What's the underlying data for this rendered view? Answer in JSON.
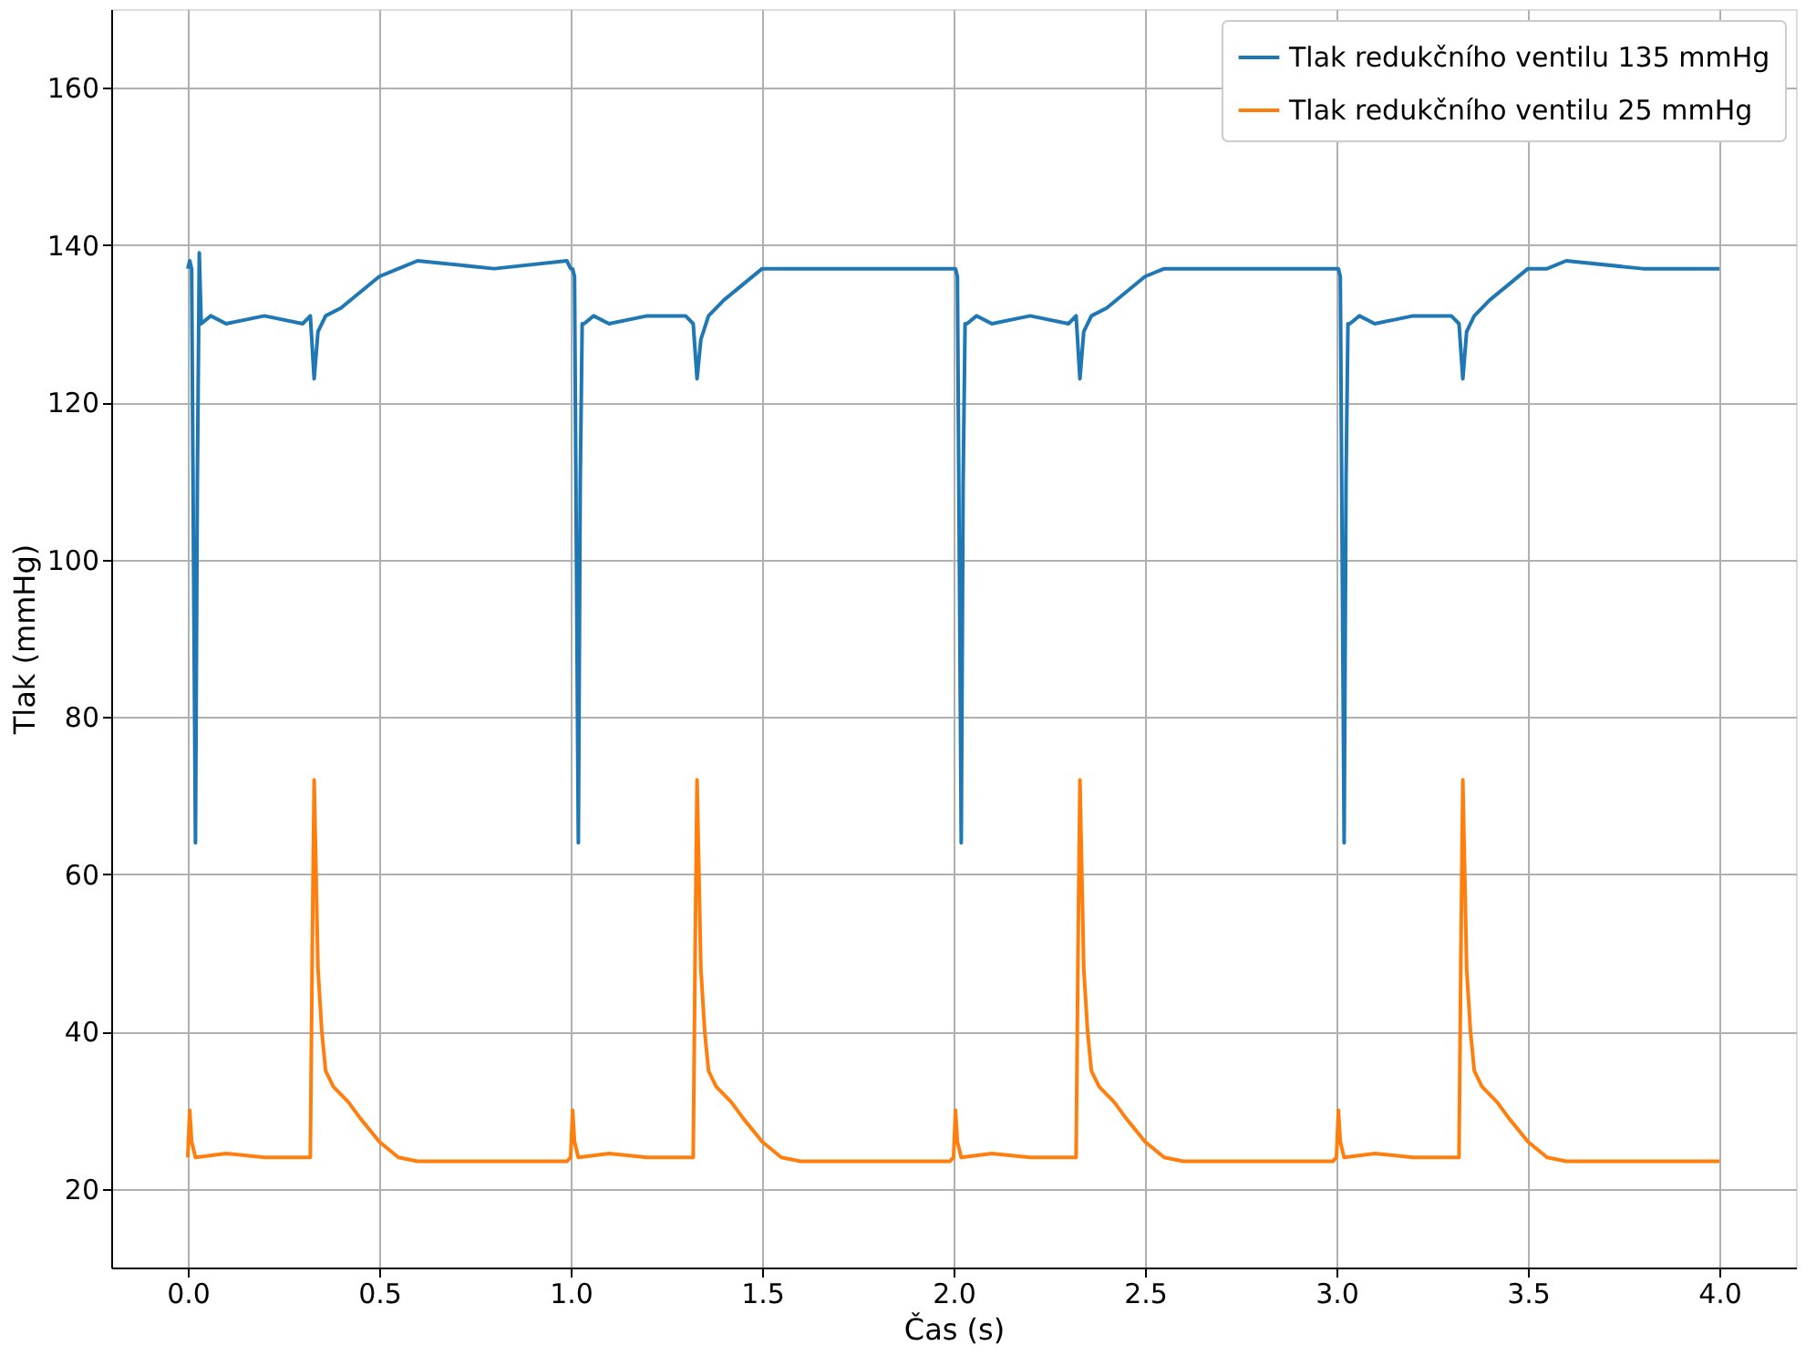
{
  "chart_data": {
    "type": "line",
    "xlabel": "Čas (s)",
    "ylabel": "Tlak (mmHg)",
    "xlim": [
      -0.2,
      4.2
    ],
    "ylim": [
      10,
      170
    ],
    "xticks": [
      {
        "value": 0,
        "label": "0.0"
      },
      0.5,
      {
        "value": 1,
        "label": "1.0"
      },
      1.5,
      {
        "value": 2,
        "label": "2.0"
      },
      2.5,
      {
        "value": 3,
        "label": "3.0"
      },
      3.5,
      {
        "value": 4,
        "label": "4.0"
      }
    ],
    "yticks": [
      20,
      40,
      60,
      80,
      100,
      120,
      140,
      160
    ],
    "grid": true,
    "legend": "top right",
    "marker": "none",
    "line_style": "solid",
    "series": [
      {
        "name": "Tlak redukčního ventilu 135 mmHg",
        "color": "#1f77b4",
        "x": [
          0,
          0.005,
          0.01,
          0.015,
          0.02,
          0.025,
          0.03,
          0.035,
          0.06,
          0.1,
          0.2,
          0.3,
          0.32,
          0.33,
          0.34,
          0.36,
          0.4,
          0.45,
          0.5,
          0.55,
          0.6,
          0.8,
          0.99,
          1,
          1.005,
          1.01,
          1.015,
          1.02,
          1.025,
          1.03,
          1.035,
          1.06,
          1.1,
          1.2,
          1.3,
          1.32,
          1.33,
          1.34,
          1.36,
          1.4,
          1.45,
          1.5,
          1.55,
          1.6,
          1.8,
          1.99,
          2,
          2.005,
          2.01,
          2.015,
          2.02,
          2.025,
          2.03,
          2.035,
          2.06,
          2.1,
          2.2,
          2.3,
          2.32,
          2.33,
          2.34,
          2.36,
          2.4,
          2.45,
          2.5,
          2.55,
          2.6,
          2.8,
          2.99,
          3,
          3.005,
          3.01,
          3.015,
          3.02,
          3.025,
          3.03,
          3.035,
          3.06,
          3.1,
          3.2,
          3.3,
          3.32,
          3.33,
          3.34,
          3.36,
          3.4,
          3.45,
          3.5,
          3.55,
          3.6,
          3.8,
          3.99,
          4.0
        ],
        "values": [
          137,
          138,
          137,
          100,
          64,
          110,
          139,
          130,
          131,
          130,
          131,
          130,
          131,
          123,
          129,
          131,
          132,
          134,
          136,
          137,
          138,
          137,
          138,
          137,
          137,
          136,
          100,
          64,
          110,
          130,
          130,
          131,
          130,
          131,
          131,
          130,
          123,
          128,
          131,
          133,
          135,
          137,
          137,
          137,
          137,
          137,
          137,
          137,
          136,
          100,
          64,
          110,
          130,
          130,
          131,
          130,
          131,
          130,
          131,
          123,
          129,
          131,
          132,
          134,
          136,
          137,
          137,
          137,
          137,
          137,
          137,
          136,
          100,
          64,
          110,
          130,
          130,
          131,
          130,
          131,
          131,
          130,
          123,
          129,
          131,
          133,
          135,
          137,
          137,
          138,
          137,
          137,
          137
        ]
      },
      {
        "name": "Tlak redukčního ventilu 25 mmHg",
        "color": "#ff7f0e",
        "x": [
          0,
          0.005,
          0.01,
          0.02,
          0.1,
          0.2,
          0.32,
          0.325,
          0.33,
          0.335,
          0.34,
          0.35,
          0.36,
          0.38,
          0.42,
          0.45,
          0.5,
          0.55,
          0.6,
          0.8,
          0.99,
          1,
          1.005,
          1.01,
          1.02,
          1.1,
          1.2,
          1.32,
          1.325,
          1.33,
          1.335,
          1.34,
          1.35,
          1.36,
          1.38,
          1.42,
          1.45,
          1.5,
          1.55,
          1.6,
          1.8,
          1.99,
          2,
          2.005,
          2.01,
          2.02,
          2.1,
          2.2,
          2.32,
          2.325,
          2.33,
          2.335,
          2.34,
          2.35,
          2.36,
          2.38,
          2.42,
          2.45,
          2.5,
          2.55,
          2.6,
          2.8,
          2.99,
          3,
          3.005,
          3.01,
          3.02,
          3.1,
          3.2,
          3.32,
          3.325,
          3.33,
          3.335,
          3.34,
          3.35,
          3.36,
          3.38,
          3.42,
          3.45,
          3.5,
          3.55,
          3.6,
          3.8,
          3.99,
          4.0
        ],
        "values": [
          24,
          30,
          26,
          24,
          24.5,
          24,
          24,
          50,
          72,
          60,
          48,
          40,
          35,
          33,
          31,
          29,
          26,
          24,
          23.5,
          23.5,
          23.5,
          24,
          30,
          26,
          24,
          24.5,
          24,
          24,
          50,
          72,
          60,
          48,
          40,
          35,
          33,
          31,
          29,
          26,
          24,
          23.5,
          23.5,
          23.5,
          24,
          30,
          26,
          24,
          24.5,
          24,
          24,
          50,
          72,
          60,
          48,
          40,
          35,
          33,
          31,
          29,
          26,
          24,
          23.5,
          23.5,
          23.5,
          24,
          30,
          26,
          24,
          24.5,
          24,
          24,
          50,
          72,
          60,
          48,
          40,
          35,
          33,
          31,
          29,
          26,
          24,
          23.5,
          23.5,
          23.5,
          23.5
        ]
      }
    ]
  }
}
